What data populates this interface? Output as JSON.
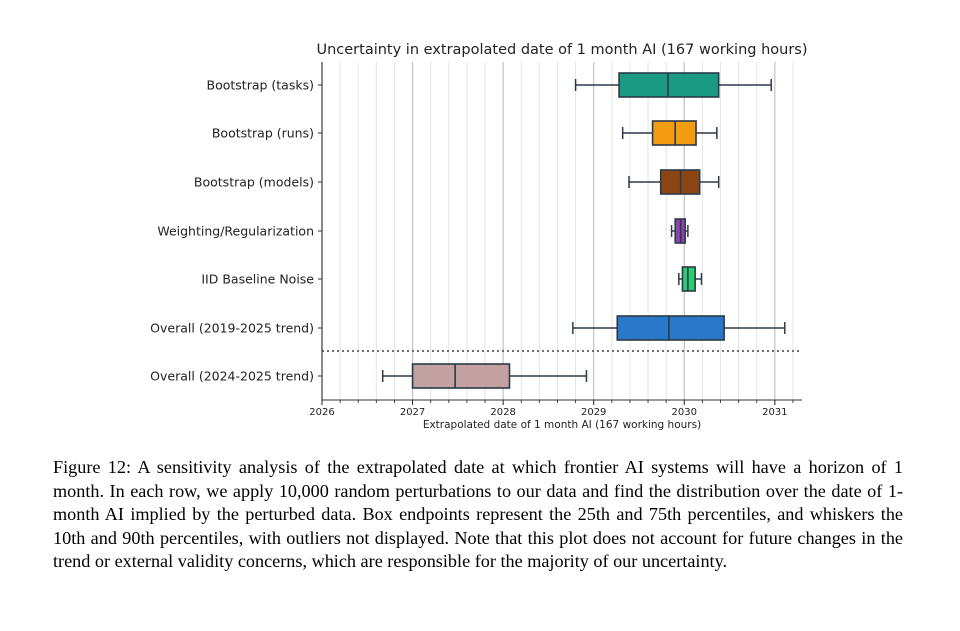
{
  "chart_data": {
    "type": "box",
    "orientation": "horizontal",
    "title": "Uncertainty in extrapolated date of 1 month AI (167 working hours)",
    "xlabel": "Extrapolated date of 1 month AI (167 working hours)",
    "ylabel": "",
    "xlim": [
      2026,
      2031.3
    ],
    "xticks": [
      "2026",
      "2027",
      "2028",
      "2029",
      "2030",
      "2031"
    ],
    "grid": "vertical",
    "separator": "dotted line between 'Overall (2019-2025 trend)' and 'Overall (2024-2025 trend)'",
    "series": [
      {
        "name": "Bootstrap (tasks)",
        "whisker_low": 2028.8,
        "q1": 2029.28,
        "median": 2029.82,
        "q3": 2030.38,
        "whisker_high": 2030.96,
        "color": "#1a9a83"
      },
      {
        "name": "Bootstrap (runs)",
        "whisker_low": 2029.32,
        "q1": 2029.65,
        "median": 2029.9,
        "q3": 2030.13,
        "whisker_high": 2030.36,
        "color": "#f39c12"
      },
      {
        "name": "Bootstrap (models)",
        "whisker_low": 2029.39,
        "q1": 2029.74,
        "median": 2029.96,
        "q3": 2030.17,
        "whisker_high": 2030.38,
        "color": "#8b4513"
      },
      {
        "name": "Weighting/Regularization",
        "whisker_low": 2029.86,
        "q1": 2029.9,
        "median": 2029.96,
        "q3": 2030.01,
        "whisker_high": 2030.04,
        "color": "#8e44ad"
      },
      {
        "name": "IID Baseline Noise",
        "whisker_low": 2029.94,
        "q1": 2029.98,
        "median": 2030.04,
        "q3": 2030.12,
        "whisker_high": 2030.19,
        "color": "#2ecc71"
      },
      {
        "name": "Overall (2019-2025 trend)",
        "whisker_low": 2028.77,
        "q1": 2029.26,
        "median": 2029.83,
        "q3": 2030.44,
        "whisker_high": 2031.11,
        "color": "#2978c9"
      },
      {
        "name": "Overall (2024-2025 trend)",
        "whisker_low": 2026.67,
        "q1": 2027.0,
        "median": 2027.47,
        "q3": 2028.07,
        "whisker_high": 2028.92,
        "color": "#c4a1a1"
      }
    ]
  },
  "caption": {
    "label": "Figure 12:",
    "text": "A sensitivity analysis of the extrapolated date at which frontier AI systems will have a horizon of 1 month. In each row, we apply 10,000 random perturbations to our data and find the distribution over the date of 1-month AI implied by the perturbed data. Box endpoints represent the 25th and 75th percentiles, and whiskers the 10th and 90th percentiles, with outliers not displayed. Note that this plot does not account for future changes in the trend or external validity concerns, which are responsible for the majority of our uncertainty."
  }
}
